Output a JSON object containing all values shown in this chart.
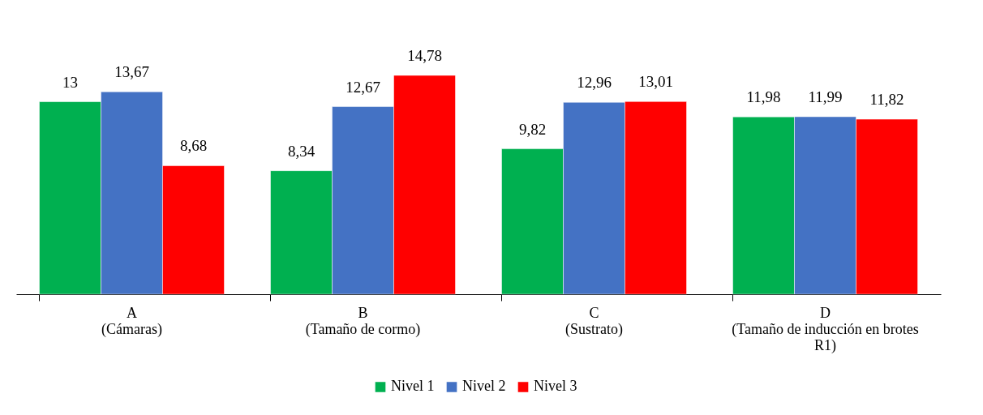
{
  "chart_data": {
    "type": "bar",
    "categories": [
      "A\n(Cámaras)",
      "B\n(Tamaño de cormo)",
      "C\n(Sustrato)",
      "D\n(Tamaño de inducción en brotes R1)"
    ],
    "series": [
      {
        "name": "Nivel 1",
        "color": "#00b050",
        "values": [
          13,
          8.34,
          9.82,
          11.98
        ],
        "value_labels": [
          "13",
          "8,34",
          "9,82",
          "11,98"
        ]
      },
      {
        "name": "Nivel 2",
        "color": "#4472c4",
        "values": [
          13.67,
          12.67,
          12.96,
          11.99
        ],
        "value_labels": [
          "13,67",
          "12,67",
          "12,96",
          "11,99"
        ]
      },
      {
        "name": "Nivel 3",
        "color": "#ff0000",
        "values": [
          8.68,
          14.78,
          13.01,
          11.82
        ],
        "value_labels": [
          "8,68",
          "14,78",
          "13,01",
          "11,82"
        ]
      }
    ],
    "legend": "bottom",
    "grid": false
  }
}
